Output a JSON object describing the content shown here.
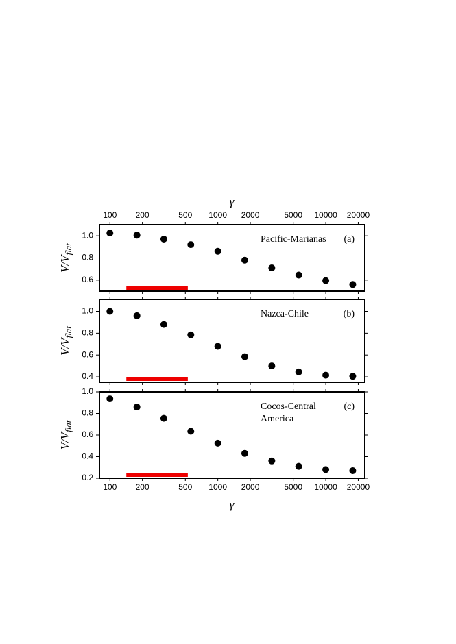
{
  "chart_data": [
    {
      "type": "scatter",
      "log_x": true,
      "xlabel": "γ",
      "xlabel_position": "top",
      "xtick_labels": "top",
      "ylabel": "V/V",
      "ylabel_sub": "flat",
      "title_lines": [
        "Pacific-Marianas"
      ],
      "panel_label": "(a)",
      "x": [
        100,
        178,
        316,
        562,
        1000,
        1778,
        3162,
        5623,
        10000,
        17783
      ],
      "series": [
        {
          "color": "#000000",
          "values": [
            1.025,
            1.006,
            0.97,
            0.92,
            0.86,
            0.78,
            0.71,
            0.645,
            0.595,
            0.56
          ]
        }
      ],
      "highlight_range": [
        142,
        527
      ],
      "highlight_color": "#ee0000",
      "xlim": [
        80,
        23000
      ],
      "ylim": [
        0.5,
        1.1
      ],
      "xticks": [
        100,
        200,
        500,
        1000,
        2000,
        5000,
        10000,
        20000
      ],
      "yticks": [
        {
          "value": 1,
          "label": "1.0"
        },
        0.8,
        0.6
      ]
    },
    {
      "type": "scatter",
      "log_x": true,
      "xtick_labels": "none",
      "ylabel": "V/V",
      "ylabel_sub": "flat",
      "title_lines": [
        "Nazca-Chile"
      ],
      "panel_label": "(b)",
      "x": [
        100,
        178,
        316,
        562,
        1000,
        1778,
        3162,
        5623,
        10000,
        17783
      ],
      "series": [
        {
          "color": "#000000",
          "values": [
            1.0,
            0.96,
            0.88,
            0.785,
            0.68,
            0.585,
            0.5,
            0.445,
            0.415,
            0.405
          ]
        }
      ],
      "highlight_range": [
        142,
        527
      ],
      "highlight_color": "#ee0000",
      "xlim": [
        80,
        23000
      ],
      "ylim": [
        0.35,
        1.11
      ],
      "xticks": [
        100,
        200,
        500,
        1000,
        2000,
        5000,
        10000,
        20000
      ],
      "yticks": [
        {
          "value": 1,
          "label": "1.0"
        },
        0.8,
        0.6,
        0.4
      ]
    },
    {
      "type": "scatter",
      "log_x": true,
      "xlabel": "γ",
      "xlabel_position": "bottom",
      "xtick_labels": "bottom",
      "ylabel": "V/V",
      "ylabel_sub": "flat",
      "title_lines": [
        "Cocos-Central",
        "America"
      ],
      "panel_label": "(c)",
      "x": [
        100,
        178,
        316,
        562,
        1000,
        1778,
        3162,
        5623,
        10000,
        17783
      ],
      "series": [
        {
          "color": "#000000",
          "values": [
            0.936,
            0.86,
            0.755,
            0.635,
            0.525,
            0.43,
            0.36,
            0.31,
            0.28,
            0.27
          ]
        }
      ],
      "highlight_range": [
        142,
        527
      ],
      "highlight_color": "#ee0000",
      "xlim": [
        80,
        23000
      ],
      "ylim": [
        0.2,
        1.0
      ],
      "xticks": [
        100,
        200,
        500,
        1000,
        2000,
        5000,
        10000,
        20000
      ],
      "yticks": [
        {
          "value": 1,
          "label": "1.0"
        },
        0.8,
        0.6,
        0.4,
        0.2
      ]
    }
  ]
}
